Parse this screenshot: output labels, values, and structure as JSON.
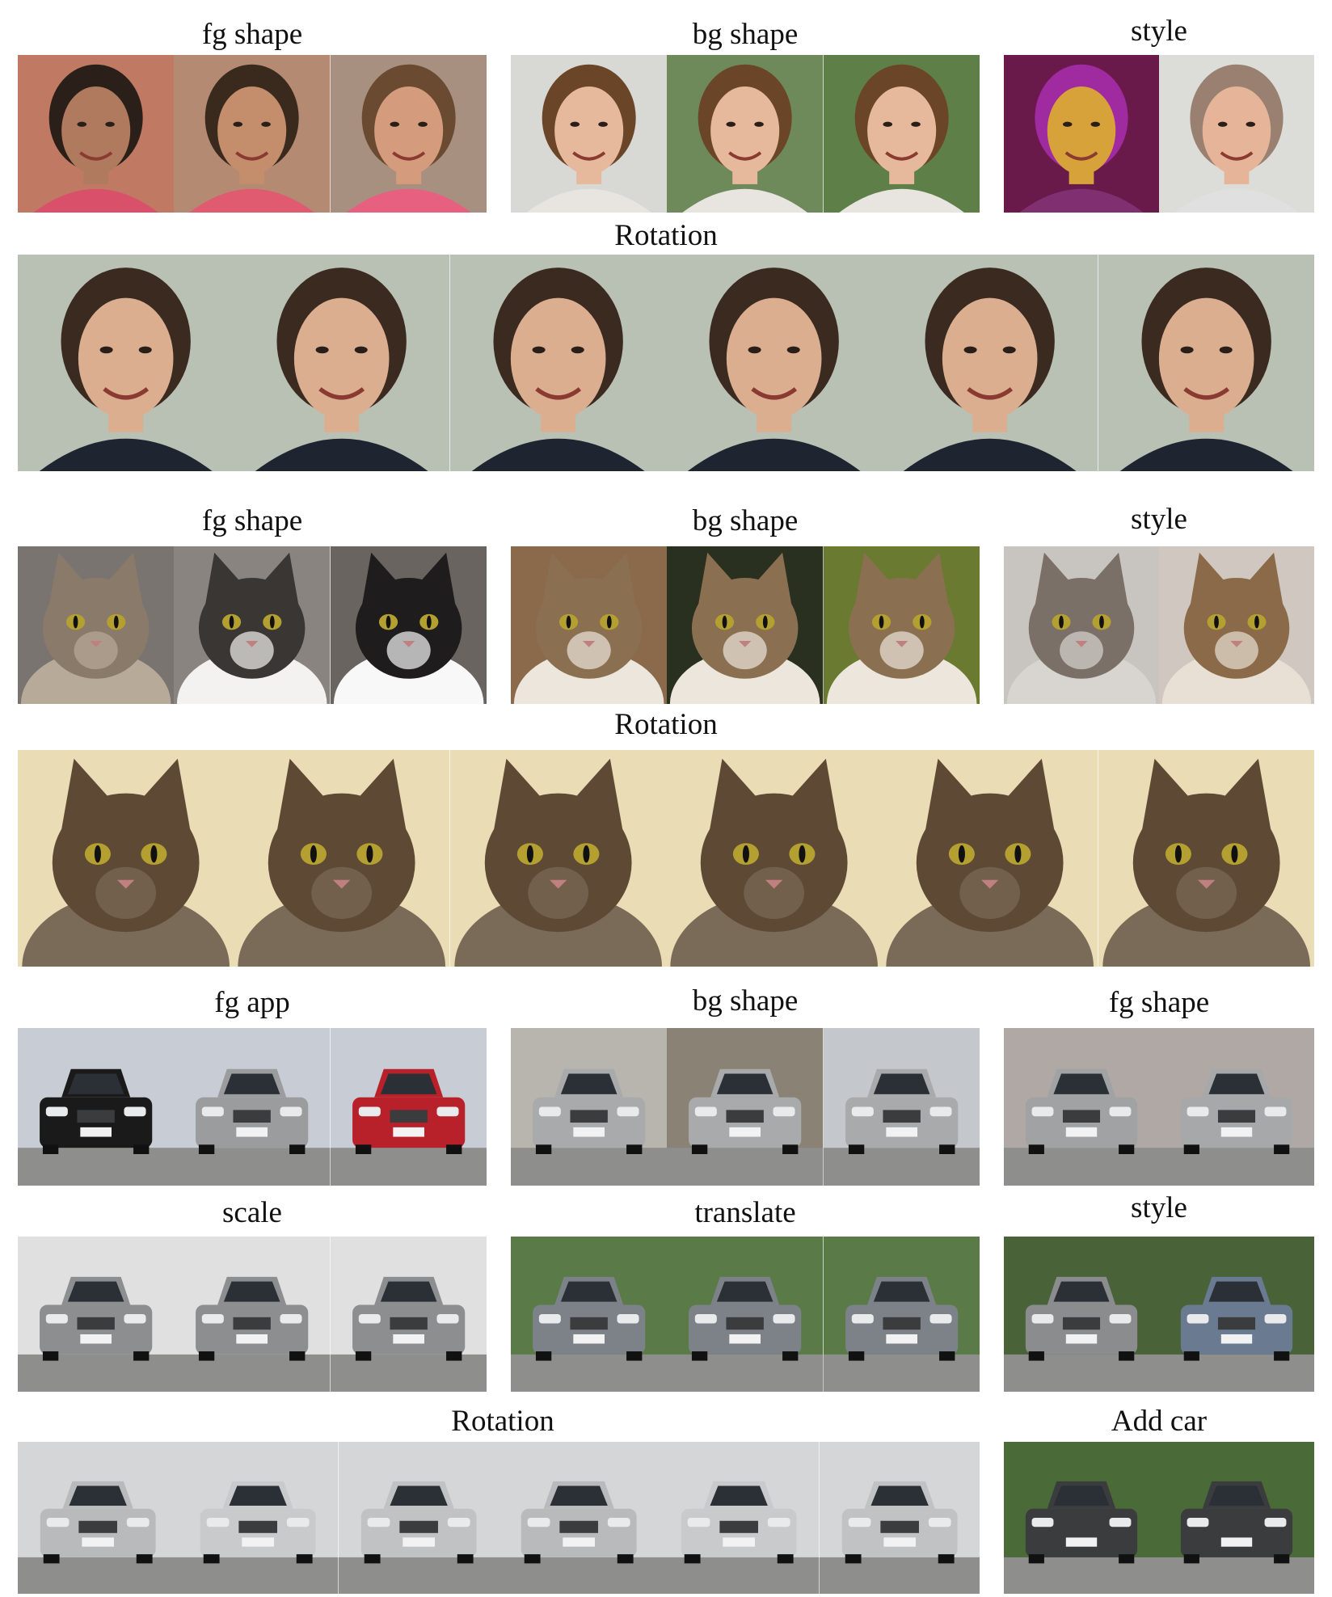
{
  "sections": [
    {
      "id": "faces",
      "labels": {
        "fg_shape": "fg shape",
        "bg_shape": "bg shape",
        "style": "style",
        "rotation": "Rotation"
      },
      "tiles": {
        "fg_shape": [
          {
            "skin": "#b07a5e",
            "hair": "#2b1f1a",
            "bg": "#c07a64",
            "cloth": "#d9506a"
          },
          {
            "skin": "#c48d6c",
            "hair": "#3a2a1e",
            "bg": "#b58a72",
            "cloth": "#e05a70"
          },
          {
            "skin": "#d49c7c",
            "hair": "#6a4a30",
            "bg": "#a89080",
            "cloth": "#e86080"
          }
        ],
        "bg_shape": [
          {
            "skin": "#e6b89c",
            "hair": "#6b4528",
            "bg": "#d8d8d4",
            "cloth": "#e8e4e0"
          },
          {
            "skin": "#e6b89c",
            "hair": "#6b4528",
            "bg": "#6e8a5a",
            "cloth": "#e8e4e0"
          },
          {
            "skin": "#e6b89c",
            "hair": "#6b4528",
            "bg": "#5e7f48",
            "cloth": "#e8e4e0"
          }
        ],
        "style": [
          {
            "skin": "#d8a23a",
            "hair": "#a02aa0",
            "bg": "#6a1a4a",
            "cloth": "#803070"
          },
          {
            "skin": "#e6b498",
            "hair": "#9a8070",
            "bg": "#dcdcd8",
            "cloth": "#e0e0e0"
          }
        ],
        "rotation": [
          {
            "skin": "#dcae90",
            "hair": "#3a2a20",
            "bg": "#b9c0b4",
            "cloth": "#1e2430"
          },
          {
            "skin": "#dcae90",
            "hair": "#3a2a20",
            "bg": "#b9c0b4",
            "cloth": "#1e2430"
          },
          {
            "skin": "#dcae90",
            "hair": "#3a2a20",
            "bg": "#b9c0b4",
            "cloth": "#1e2430"
          },
          {
            "skin": "#dcae90",
            "hair": "#3a2a20",
            "bg": "#b9c0b4",
            "cloth": "#1e2430"
          },
          {
            "skin": "#dcae90",
            "hair": "#3a2a20",
            "bg": "#b9c0b4",
            "cloth": "#1e2430"
          },
          {
            "skin": "#dcae90",
            "hair": "#3a2a20",
            "bg": "#b9c0b4",
            "cloth": "#1e2430"
          }
        ]
      }
    },
    {
      "id": "cats",
      "labels": {
        "fg_shape": "fg shape",
        "bg_shape": "bg shape",
        "style": "style",
        "rotation": "Rotation"
      },
      "tiles": {
        "fg_shape": [
          {
            "fur": "#8a7a6a",
            "chest": "#b8aa98",
            "bg": "#7a7470"
          },
          {
            "fur": "#3a3634",
            "chest": "#f4f2f0",
            "bg": "#8a8480"
          },
          {
            "fur": "#1e1c1c",
            "chest": "#f8f8f8",
            "bg": "#6a6460"
          }
        ],
        "bg_shape": [
          {
            "fur": "#8a7050",
            "chest": "#ece6dc",
            "bg": "#8a6a4a"
          },
          {
            "fur": "#8a7050",
            "chest": "#ece6dc",
            "bg": "#2a3020"
          },
          {
            "fur": "#8a7050",
            "chest": "#ece6dc",
            "bg": "#6a7a30"
          }
        ],
        "style": [
          {
            "fur": "#7a7068",
            "chest": "#d8d4d0",
            "bg": "#c8c4c0"
          },
          {
            "fur": "#8a6a48",
            "chest": "#e8e0d4",
            "bg": "#d0c8c0"
          }
        ],
        "rotation": [
          {
            "fur": "#5e4a34",
            "chest": "#7a6a58",
            "bg": "#eadcb4"
          },
          {
            "fur": "#5e4a34",
            "chest": "#7a6a58",
            "bg": "#eadcb4"
          },
          {
            "fur": "#5e4a34",
            "chest": "#7a6a58",
            "bg": "#eadcb4"
          },
          {
            "fur": "#5e4a34",
            "chest": "#7a6a58",
            "bg": "#eadcb4"
          },
          {
            "fur": "#5e4a34",
            "chest": "#7a6a58",
            "bg": "#eadcb4"
          },
          {
            "fur": "#5e4a34",
            "chest": "#7a6a58",
            "bg": "#eadcb4"
          }
        ]
      }
    },
    {
      "id": "cars",
      "labels": {
        "fg_app": "fg app",
        "bg_shape": "bg shape",
        "fg_shape": "fg shape",
        "scale": "scale",
        "translate": "translate",
        "style": "style",
        "rotation": "Rotation",
        "add_car": "Add car"
      },
      "tiles": {
        "fg_app": [
          {
            "body": "#1a1a1a",
            "bg": "#c8ccd4"
          },
          {
            "body": "#9a9c9e",
            "bg": "#c8ccd4"
          },
          {
            "body": "#b8202a",
            "bg": "#c8ccd4"
          }
        ],
        "bg_shape": [
          {
            "body": "#a8aaac",
            "bg": "#b8b4ae"
          },
          {
            "body": "#a8aaac",
            "bg": "#8a8274"
          },
          {
            "body": "#a8aaac",
            "bg": "#c4c8cc"
          }
        ],
        "fg_shape": [
          {
            "body": "#a0a2a4",
            "bg": "#b0a8a4"
          },
          {
            "body": "#a6a8aa",
            "bg": "#b0a8a4"
          }
        ],
        "scale": [
          {
            "body": "#8c8e90",
            "bg": "#e0e0e0"
          },
          {
            "body": "#8c8e90",
            "bg": "#e0e0e0"
          },
          {
            "body": "#8c8e90",
            "bg": "#e0e0e0"
          }
        ],
        "translate": [
          {
            "body": "#7c8288",
            "bg": "#5a7a48"
          },
          {
            "body": "#7c8288",
            "bg": "#5a7a48"
          },
          {
            "body": "#7c8288",
            "bg": "#5a7a48"
          }
        ],
        "style": [
          {
            "body": "#8a8c8e",
            "bg": "#4a6238"
          },
          {
            "body": "#6a7a90",
            "bg": "#4a6238"
          }
        ],
        "rotation": [
          {
            "body": "#b8babc",
            "bg": "#d4d6d8"
          },
          {
            "body": "#c8cacc",
            "bg": "#d4d6d8"
          },
          {
            "body": "#c0c2c4",
            "bg": "#d4d6d8"
          },
          {
            "body": "#b8babc",
            "bg": "#d4d6d8"
          },
          {
            "body": "#c8cacc",
            "bg": "#d4d6d8"
          },
          {
            "body": "#c0c2c4",
            "bg": "#d4d6d8"
          }
        ],
        "add_car": [
          {
            "body": "#3a3c3e",
            "bg": "#4a6a38"
          },
          {
            "body": "#3a3c3e",
            "bg": "#4a6a38"
          }
        ]
      }
    }
  ]
}
